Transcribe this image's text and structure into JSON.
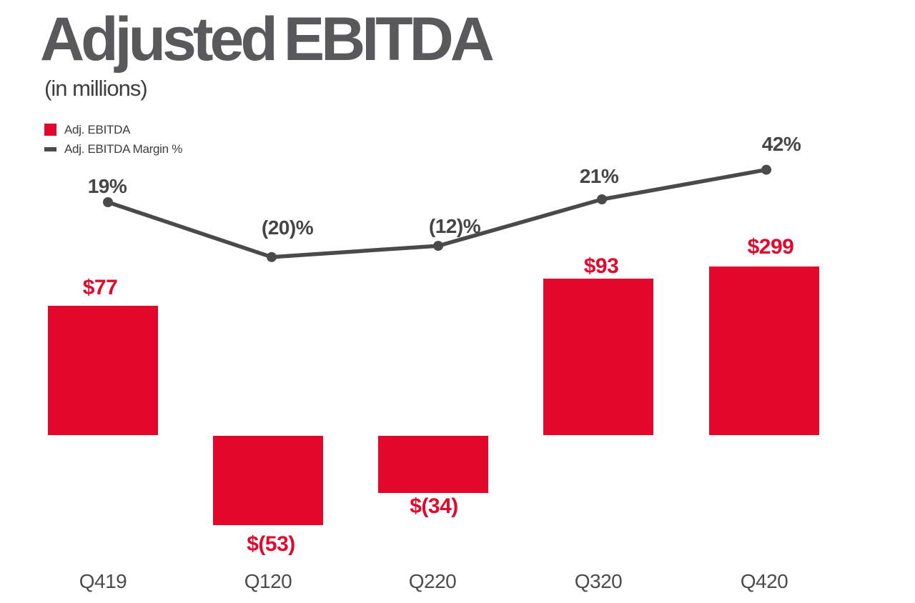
{
  "title": "Adjusted EBITDA",
  "subtitle": "(in millions)",
  "legend": {
    "items": [
      {
        "swatch": "square",
        "label": "Adj. EBITDA"
      },
      {
        "swatch": "dash",
        "label": "Adj. EBITDA Margin %"
      }
    ]
  },
  "colors": {
    "bar_red": "#e3072c",
    "line_gray": "#4a4a4b",
    "title_gray": "#59595c"
  },
  "chart_data": {
    "type": "bar",
    "subtype": "bar-line-combo",
    "title": "Adjusted EBITDA",
    "subtitle": "(in millions)",
    "categories": [
      "Q419",
      "Q120",
      "Q220",
      "Q320",
      "Q420"
    ],
    "series": [
      {
        "name": "Adj. EBITDA",
        "type": "bar",
        "values": [
          77,
          -53,
          -34,
          93,
          299
        ],
        "labels": [
          "$77",
          "$(53)",
          "$(34)",
          "$93",
          "$299"
        ],
        "color": "#e3072c"
      },
      {
        "name": "Adj. EBITDA Margin %",
        "type": "line",
        "values": [
          19,
          -20,
          -12,
          21,
          42
        ],
        "labels": [
          "19%",
          "(20)%",
          "(12)%",
          "21%",
          "42%"
        ],
        "color": "#4a4a4b"
      }
    ],
    "legend_position": "top-left",
    "gridlines": false,
    "y_axis_visible": false,
    "x_axis_labels_visible": true,
    "data_labels": "all points and bars labeled",
    "notes": "Q420 bar ($299) is drawn truncated, not to the same scale as other bars"
  }
}
